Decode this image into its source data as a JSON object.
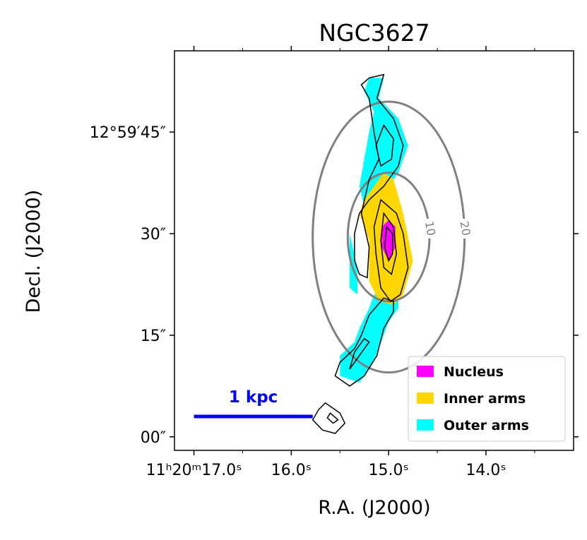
{
  "chart_data": {
    "type": "contour",
    "title": "NGC3627",
    "xlabel": "R.A. (J2000)",
    "ylabel": "Decl. (J2000)",
    "x_ticks": [
      {
        "value": 17.0,
        "label": "11ʰ20ᵐ17.0ˢ"
      },
      {
        "value": 16.0,
        "label": "16.0ˢ"
      },
      {
        "value": 15.0,
        "label": "15.0ˢ"
      },
      {
        "value": 14.0,
        "label": "14.0ˢ"
      }
    ],
    "y_ticks": [
      {
        "value": 45,
        "label": "12°59′45″"
      },
      {
        "value": 30,
        "label": "30″"
      },
      {
        "value": 15,
        "label": "15″"
      },
      {
        "value": 0,
        "label": "00″"
      }
    ],
    "xlim": [
      17.2,
      13.1
    ],
    "ylim": [
      -2,
      57
    ],
    "legend_position": "lower-right",
    "legend": [
      {
        "label": "Nucleus",
        "color": "#ff00ff"
      },
      {
        "label": "Inner arms",
        "color": "#ffd700"
      },
      {
        "label": "Outer arms",
        "color": "#00ffff"
      }
    ],
    "regions": {
      "outer_upper": [
        [
          15.2,
          53
        ],
        [
          15.05,
          53
        ],
        [
          15.1,
          50
        ],
        [
          14.9,
          47
        ],
        [
          14.8,
          43
        ],
        [
          14.9,
          39
        ],
        [
          15.05,
          36
        ],
        [
          15.15,
          34
        ],
        [
          15.25,
          34
        ],
        [
          15.3,
          37
        ],
        [
          15.25,
          41
        ],
        [
          15.2,
          45
        ],
        [
          15.15,
          48
        ],
        [
          15.25,
          51
        ]
      ],
      "outer_left": [
        [
          15.32,
          25
        ],
        [
          15.4,
          30
        ],
        [
          15.4,
          22
        ],
        [
          15.32,
          21
        ]
      ],
      "outer_lower": [
        [
          14.9,
          21
        ],
        [
          14.9,
          19
        ],
        [
          15.0,
          17
        ],
        [
          15.1,
          13
        ],
        [
          15.2,
          10
        ],
        [
          15.3,
          8
        ],
        [
          15.5,
          9
        ],
        [
          15.5,
          12
        ],
        [
          15.35,
          14
        ],
        [
          15.3,
          16
        ],
        [
          15.2,
          19
        ],
        [
          15.15,
          21
        ]
      ],
      "inner": [
        [
          15.05,
          39
        ],
        [
          14.95,
          38
        ],
        [
          14.85,
          33
        ],
        [
          14.75,
          26
        ],
        [
          14.85,
          21
        ],
        [
          14.95,
          19.5
        ],
        [
          15.1,
          20
        ],
        [
          15.2,
          23
        ],
        [
          15.2,
          29
        ],
        [
          15.3,
          33
        ],
        [
          15.25,
          35
        ]
      ],
      "nucleus": [
        [
          15.0,
          32
        ],
        [
          14.93,
          31
        ],
        [
          14.93,
          28
        ],
        [
          15.0,
          26
        ],
        [
          15.07,
          28
        ],
        [
          15.07,
          31
        ]
      ]
    },
    "flux_contours": [
      [
        [
          15.2,
          53
        ],
        [
          15.05,
          53.5
        ],
        [
          15.12,
          50
        ],
        [
          14.95,
          47
        ],
        [
          14.85,
          43
        ],
        [
          14.9,
          40
        ],
        [
          15.05,
          37
        ],
        [
          15.2,
          35
        ],
        [
          15.3,
          33
        ],
        [
          15.35,
          30
        ],
        [
          15.35,
          26
        ],
        [
          15.3,
          24
        ],
        [
          15.22,
          23.5
        ],
        [
          15.2,
          28
        ],
        [
          15.28,
          33
        ],
        [
          15.2,
          38
        ],
        [
          15.1,
          41
        ],
        [
          15.15,
          45
        ],
        [
          15.2,
          50
        ],
        [
          15.28,
          52
        ]
      ],
      [
        [
          15.05,
          46
        ],
        [
          14.95,
          44
        ],
        [
          14.97,
          41
        ],
        [
          15.08,
          40
        ],
        [
          15.13,
          43
        ]
      ],
      [
        [
          15.08,
          35
        ],
        [
          14.92,
          33
        ],
        [
          14.85,
          30
        ],
        [
          14.8,
          25
        ],
        [
          14.88,
          21
        ],
        [
          14.98,
          20
        ],
        [
          15.08,
          22
        ],
        [
          15.13,
          27
        ],
        [
          15.15,
          31
        ]
      ],
      [
        [
          15.05,
          33
        ],
        [
          14.95,
          31
        ],
        [
          14.92,
          27
        ],
        [
          14.97,
          24
        ],
        [
          15.05,
          25
        ],
        [
          15.08,
          29
        ]
      ],
      [
        [
          15.02,
          31
        ],
        [
          14.96,
          30
        ],
        [
          14.96,
          27
        ],
        [
          15.0,
          26
        ],
        [
          15.04,
          28
        ]
      ],
      [
        [
          14.95,
          20
        ],
        [
          14.95,
          18.5
        ],
        [
          15.05,
          16
        ],
        [
          15.12,
          12
        ],
        [
          15.25,
          9
        ],
        [
          15.4,
          7.5
        ],
        [
          15.55,
          9
        ],
        [
          15.5,
          11
        ],
        [
          15.35,
          13
        ],
        [
          15.28,
          15
        ],
        [
          15.2,
          18
        ],
        [
          15.05,
          20.5
        ]
      ],
      [
        [
          15.2,
          14
        ],
        [
          15.3,
          12
        ],
        [
          15.4,
          10
        ],
        [
          15.35,
          12.5
        ],
        [
          15.25,
          14.5
        ]
      ],
      [
        [
          15.72,
          4
        ],
        [
          15.65,
          5
        ],
        [
          15.5,
          3.5
        ],
        [
          15.45,
          2
        ],
        [
          15.55,
          0.5
        ],
        [
          15.68,
          1
        ],
        [
          15.78,
          2.5
        ]
      ],
      [
        [
          15.6,
          3.5
        ],
        [
          15.52,
          2.5
        ],
        [
          15.57,
          2
        ],
        [
          15.63,
          2.8
        ]
      ]
    ],
    "distance_rings": [
      {
        "label": "10",
        "center": [
          15.0,
          29.5
        ],
        "ra_halfwidth_s": 0.42,
        "dec_halfheight_arcsec": 9.5
      },
      {
        "label": "20",
        "center": [
          15.0,
          29.5
        ],
        "ra_halfwidth_s": 0.78,
        "dec_halfheight_arcsec": 20.0
      }
    ],
    "scale_bar": {
      "label": "1 kpc",
      "x_from": 17.0,
      "x_to": 15.78,
      "y": 3,
      "color": "#0000ff"
    }
  }
}
